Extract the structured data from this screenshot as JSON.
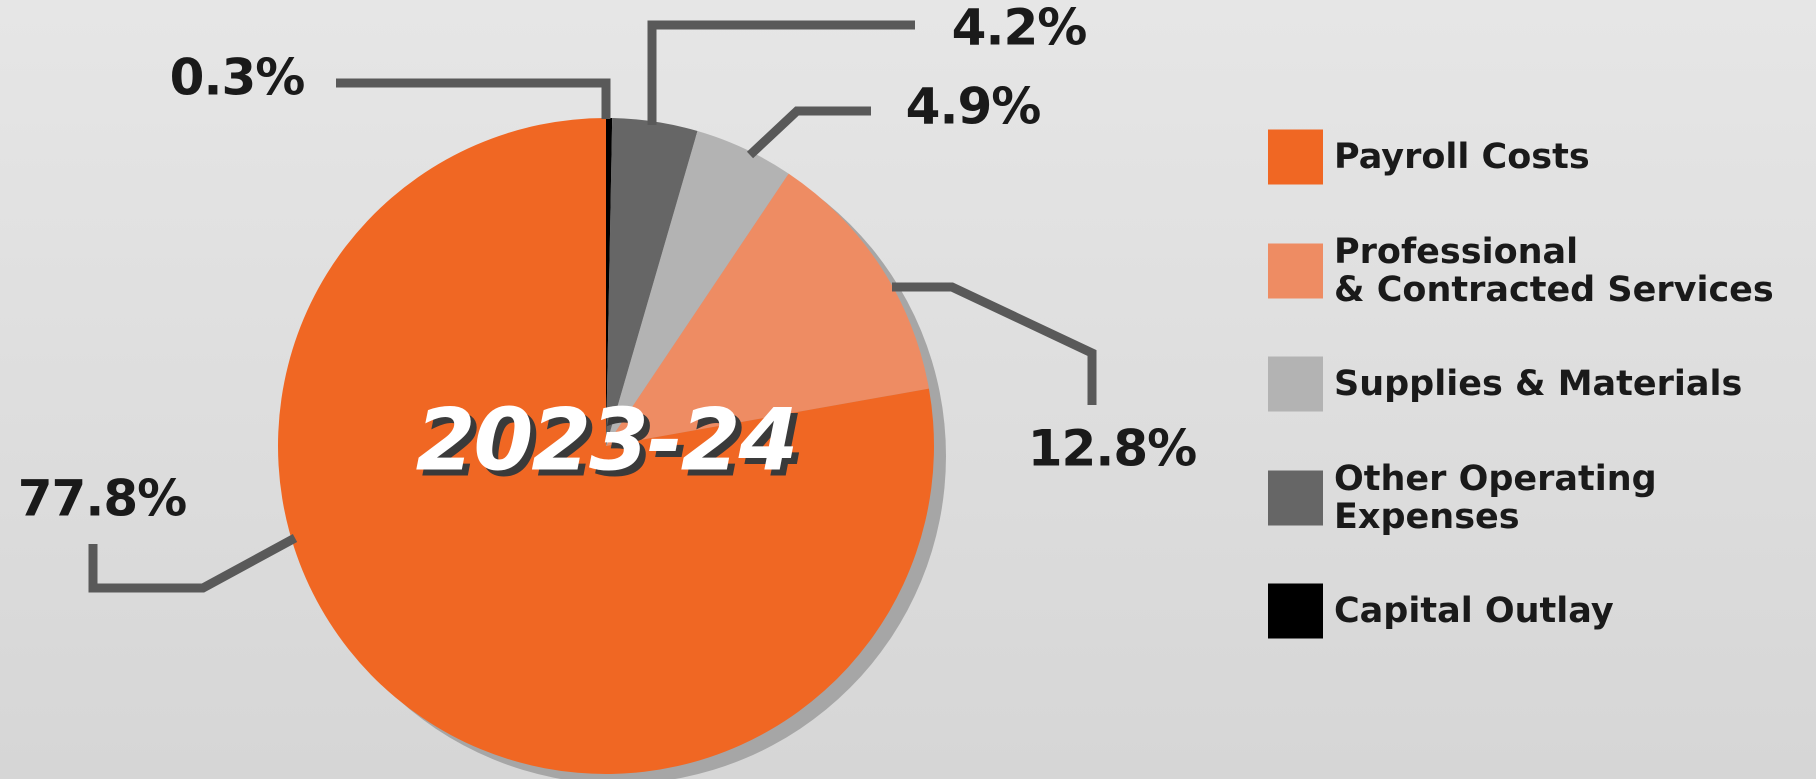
{
  "chart_data": {
    "type": "pie",
    "title": "2023-24",
    "categories": [
      "Payroll Costs",
      "Professional\n& Contracted Services",
      "Supplies & Materials",
      "Other Operating\nExpenses",
      "Capital Outlay"
    ],
    "values": [
      77.8,
      12.8,
      4.9,
      4.2,
      0.3
    ],
    "value_labels": [
      "77.8%",
      "12.8%",
      "4.9%",
      "4.2%",
      "0.3%"
    ],
    "colors": [
      "#f06723",
      "#ee8c63",
      "#b3b3b3",
      "#666666",
      "#000000"
    ],
    "legend": "right"
  }
}
